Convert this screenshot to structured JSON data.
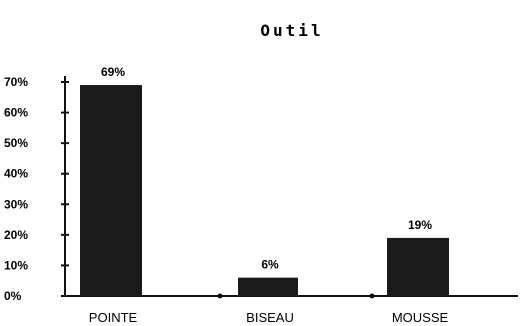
{
  "chart_data": {
    "type": "bar",
    "title": "Outil",
    "xlabel": "",
    "ylabel": "",
    "categories": [
      "POINTE",
      "BISEAU",
      "MOUSSE"
    ],
    "values": [
      69,
      6,
      19
    ],
    "data_labels": [
      "69%",
      "6%",
      "19%"
    ],
    "ylim": [
      0,
      70
    ],
    "yticks": [
      0,
      10,
      20,
      30,
      40,
      50,
      60,
      70
    ],
    "ytick_labels": [
      "0%",
      "10%",
      "20%",
      "30%",
      "40%",
      "50%",
      "60%",
      "70%"
    ],
    "grid": false,
    "legend": "none",
    "bar_color": "#1a1a1a"
  }
}
